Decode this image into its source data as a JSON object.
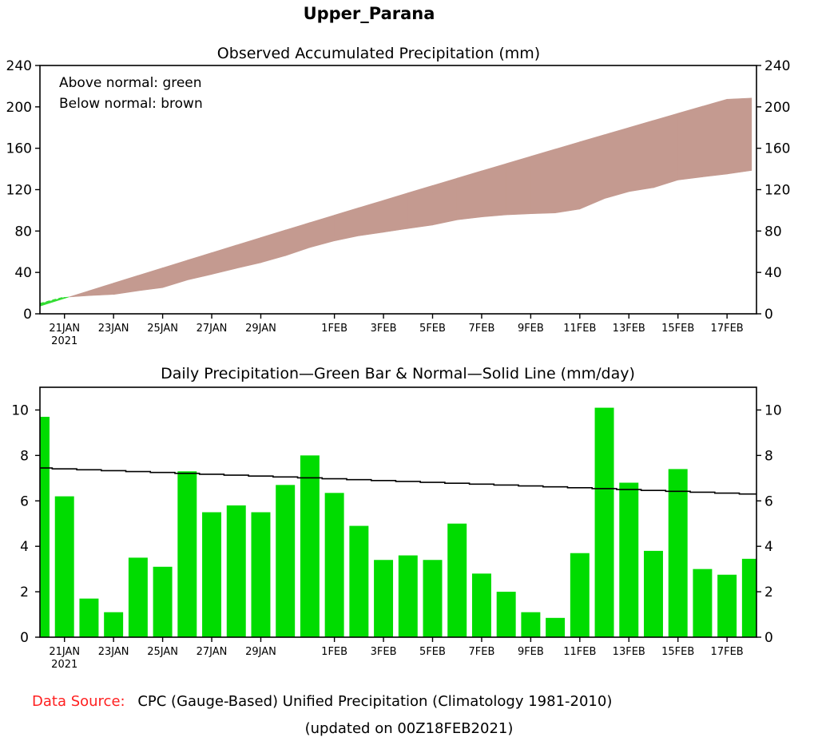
{
  "title": "Upper_Parana",
  "colors": {
    "below": "#c49a90",
    "above": "#33dd33",
    "bar": "#00dc00",
    "normal_line": "#000000",
    "source_label": "#ff2020"
  },
  "chart_data": [
    {
      "type": "area",
      "title": "Observed Accumulated Precipitation (mm)",
      "legend": [
        "Above normal: green",
        "Below normal: brown"
      ],
      "legend_position": "top-left",
      "xlabel": "",
      "ylabel": "",
      "ylim": [
        0,
        240
      ],
      "yticks": [
        "0",
        "40",
        "80",
        "120",
        "160",
        "200",
        "240"
      ],
      "xtick_labels": [
        "21JAN",
        "23JAN",
        "25JAN",
        "27JAN",
        "29JAN",
        "1FEB",
        "3FEB",
        "5FEB",
        "7FEB",
        "9FEB",
        "11FEB",
        "13FEB",
        "15FEB",
        "17FEB"
      ],
      "xtick_days": [
        1,
        3,
        5,
        7,
        9,
        12,
        14,
        16,
        18,
        20,
        22,
        24,
        26,
        28
      ],
      "xtick_year": "2021",
      "x_days": 30,
      "series": [
        {
          "name": "Observed",
          "values": [
            9.7,
            15.9,
            17.6,
            18.7,
            22.2,
            25.3,
            32.6,
            38.1,
            43.9,
            49.4,
            56.1,
            64.1,
            70.5,
            75.4,
            78.8,
            82.4,
            85.8,
            90.8,
            93.6,
            95.6,
            96.7,
            97.5,
            101.2,
            111.3,
            118.1,
            121.9,
            129.3,
            132.3,
            135.1,
            138.5
          ]
        },
        {
          "name": "Normal",
          "values": [
            7.4,
            14.9,
            22.3,
            29.7,
            37.1,
            44.4,
            51.8,
            59.1,
            66.4,
            73.7,
            81.0,
            88.2,
            95.4,
            102.6,
            109.7,
            116.9,
            124.0,
            131.1,
            138.2,
            145.2,
            152.2,
            159.2,
            166.2,
            173.1,
            180.0,
            186.9,
            193.8,
            200.6,
            207.4,
            208.5
          ]
        }
      ]
    },
    {
      "type": "bar",
      "title": "Daily Precipitation—Green Bar & Normal—Solid Line (mm/day)",
      "xlabel": "",
      "ylabel": "",
      "ylim": [
        0,
        11
      ],
      "yticks": [
        "0",
        "2",
        "4",
        "6",
        "8",
        "10"
      ],
      "xtick_labels": [
        "21JAN",
        "23JAN",
        "25JAN",
        "27JAN",
        "29JAN",
        "1FEB",
        "3FEB",
        "5FEB",
        "7FEB",
        "9FEB",
        "11FEB",
        "13FEB",
        "15FEB",
        "17FEB"
      ],
      "xtick_days": [
        1,
        3,
        5,
        7,
        9,
        12,
        14,
        16,
        18,
        20,
        22,
        24,
        26,
        28
      ],
      "xtick_year": "2021",
      "x_days": 30,
      "series": [
        {
          "name": "Daily Precipitation",
          "values": [
            9.7,
            6.2,
            1.7,
            1.1,
            3.5,
            3.1,
            7.3,
            5.5,
            5.8,
            5.5,
            6.7,
            8.0,
            6.35,
            4.9,
            3.4,
            3.6,
            3.4,
            5.0,
            2.8,
            2.0,
            1.1,
            0.85,
            3.7,
            10.1,
            6.8,
            3.8,
            7.4,
            3.0,
            2.75,
            3.45
          ]
        },
        {
          "name": "Normal",
          "start": 7.45,
          "end": 6.3
        }
      ]
    }
  ],
  "footer": {
    "source_label": "Data Source:",
    "source_text": "CPC (Gauge-Based) Unified Precipitation (Climatology 1981-2010)",
    "updated": "(updated on 00Z18FEB2021)"
  }
}
